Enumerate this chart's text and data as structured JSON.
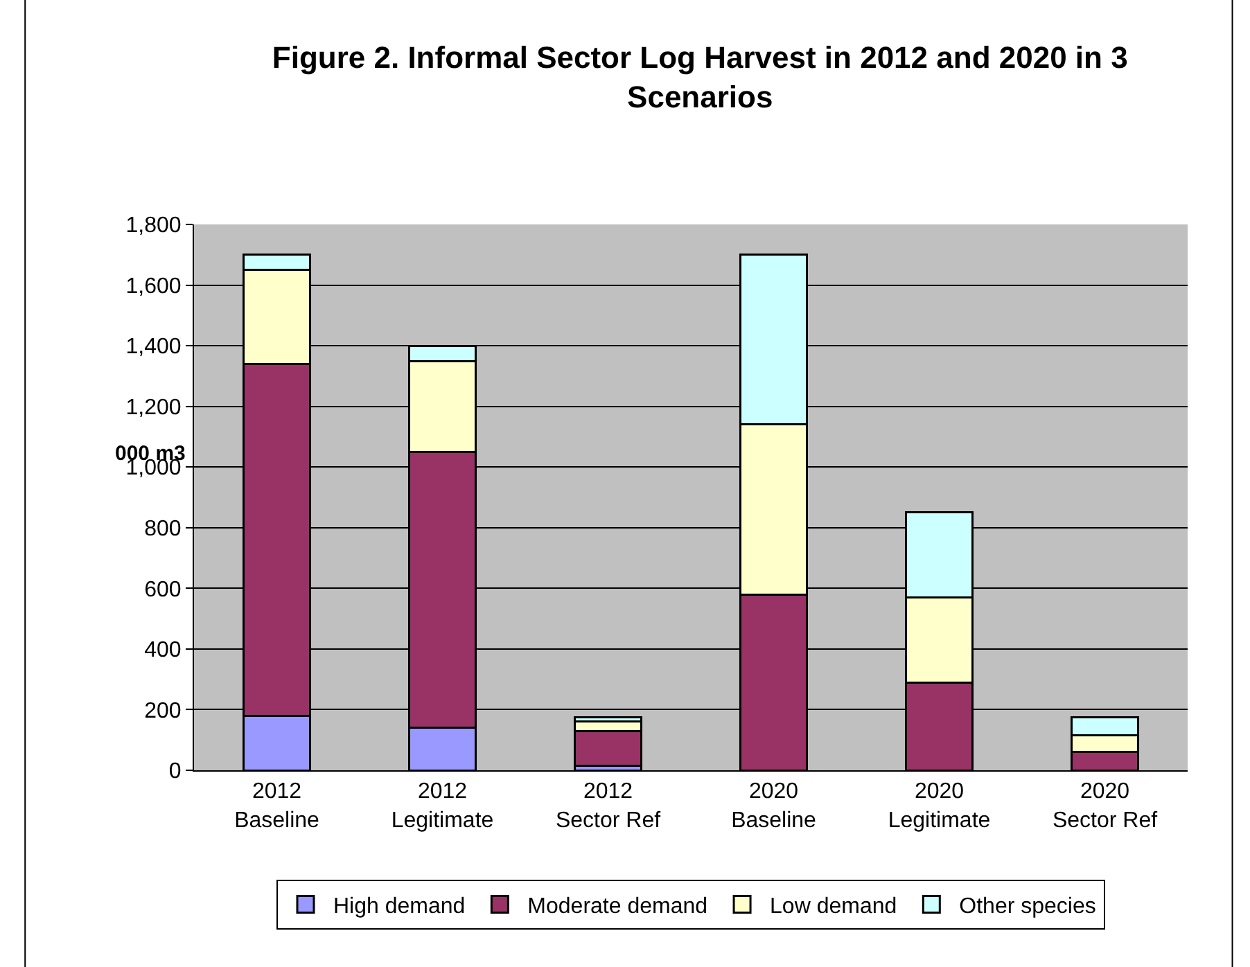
{
  "chart_data": {
    "type": "bar",
    "title": "Figure 2. Informal Sector Log Harvest in 2012 and 2020 in 3 Scenarios",
    "ylabel": "000 m3",
    "categories": [
      "2012 Baseline",
      "2012 Legitimate",
      "2012 Sector Ref",
      "2020 Baseline",
      "2020 Legitimate",
      "2020 Sector Ref"
    ],
    "stacked": true,
    "series": [
      {
        "name": "High demand",
        "color": "#9999ff",
        "values": [
          180,
          140,
          15,
          0,
          0,
          0
        ]
      },
      {
        "name": "Moderate demand",
        "color": "#993366",
        "values": [
          1160,
          910,
          115,
          580,
          290,
          60
        ]
      },
      {
        "name": "Low demand",
        "color": "#ffffcc",
        "values": [
          310,
          300,
          30,
          560,
          280,
          55
        ]
      },
      {
        "name": "Other species",
        "color": "#ccffff",
        "values": [
          50,
          50,
          15,
          560,
          280,
          60
        ]
      }
    ],
    "ylim": [
      0,
      1800
    ],
    "yticks": [
      {
        "value": 0,
        "label": "0"
      },
      {
        "value": 200,
        "label": "200"
      },
      {
        "value": 400,
        "label": "400"
      },
      {
        "value": 600,
        "label": "600"
      },
      {
        "value": 800,
        "label": "800"
      },
      {
        "value": 1000,
        "label": "1,000"
      },
      {
        "value": 1200,
        "label": "1,200"
      },
      {
        "value": 1400,
        "label": "1,400"
      },
      {
        "value": 1600,
        "label": "1,600"
      },
      {
        "value": 1800,
        "label": "1,800"
      }
    ],
    "grid": "y",
    "legend": "bottom"
  }
}
